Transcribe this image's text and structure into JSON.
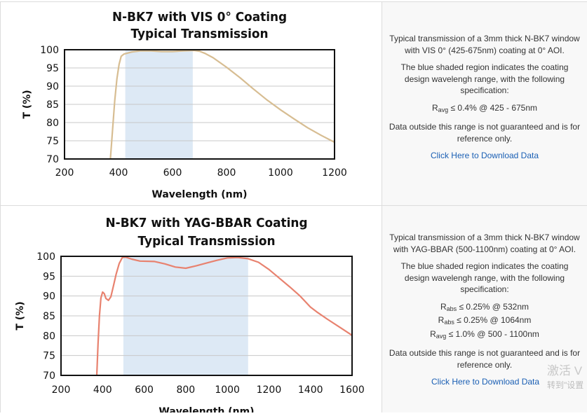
{
  "charts": [
    {
      "chart_data": {
        "type": "line",
        "title": "N-BK7 with VIS 0° Coating",
        "subtitle": "Typical Transmission",
        "xlabel": "Wavelength (nm)",
        "ylabel": "T (%)",
        "xlim": [
          200,
          1200
        ],
        "ylim": [
          70,
          100
        ],
        "xticks": [
          200,
          400,
          600,
          800,
          1000,
          1200
        ],
        "yticks": [
          70,
          75,
          80,
          85,
          90,
          95,
          100
        ],
        "grid": "horizontal",
        "shaded_region": [
          425,
          675
        ],
        "series": [
          {
            "color": "#d7bd92",
            "points": [
              [
                370,
                70
              ],
              [
                378,
                78
              ],
              [
                386,
                86
              ],
              [
                394,
                92
              ],
              [
                402,
                96
              ],
              [
                410,
                98.2
              ],
              [
                420,
                98.8
              ],
              [
                430,
                99
              ],
              [
                450,
                99.4
              ],
              [
                480,
                99.7
              ],
              [
                520,
                99.7
              ],
              [
                560,
                99.5
              ],
              [
                600,
                99.5
              ],
              [
                640,
                99.7
              ],
              [
                680,
                99.8
              ],
              [
                700,
                99.6
              ],
              [
                720,
                99
              ],
              [
                750,
                97.8
              ],
              [
                800,
                95.2
              ],
              [
                850,
                92.3
              ],
              [
                900,
                89.2
              ],
              [
                950,
                86.2
              ],
              [
                1000,
                83.5
              ],
              [
                1050,
                81
              ],
              [
                1100,
                78.6
              ],
              [
                1150,
                76.5
              ],
              [
                1200,
                74.6
              ]
            ]
          }
        ]
      },
      "description": {
        "intro": "Typical transmission of a 3mm thick N-BK7 window with VIS 0° (425-675nm) coating at 0° AOI.",
        "shading": "The blue shaded region indicates the coating design wavelengh range, with the following specification:",
        "specs": [
          {
            "sym": "R",
            "sub": "avg",
            "text": "≤ 0.4% @ 425 - 675nm"
          }
        ],
        "disclaimer": "Data outside this range is not guaranteed and is for reference only.",
        "link": "Click Here to Download Data"
      }
    },
    {
      "chart_data": {
        "type": "line",
        "title": "N-BK7 with YAG-BBAR Coating",
        "subtitle": "Typical Transmission",
        "xlabel": "Wavelength (nm)",
        "ylabel": "T (%)",
        "xlim": [
          200,
          1600
        ],
        "ylim": [
          70,
          100
        ],
        "xticks": [
          200,
          400,
          600,
          800,
          1000,
          1200,
          1400,
          1600
        ],
        "yticks": [
          70,
          75,
          80,
          85,
          90,
          95,
          100
        ],
        "grid": "horizontal",
        "shaded_region": [
          500,
          1100
        ],
        "series": [
          {
            "color": "#e8826f",
            "points": [
              [
                372,
                70
              ],
              [
                378,
                78
              ],
              [
                385,
                85
              ],
              [
                392,
                89.5
              ],
              [
                400,
                91
              ],
              [
                408,
                90.6
              ],
              [
                416,
                89.4
              ],
              [
                428,
                88.9
              ],
              [
                440,
                89.8
              ],
              [
                452,
                92.5
              ],
              [
                465,
                95.5
              ],
              [
                480,
                98.2
              ],
              [
                495,
                99.7
              ],
              [
                510,
                99.8
              ],
              [
                540,
                99.3
              ],
              [
                580,
                98.8
              ],
              [
                650,
                98.7
              ],
              [
                700,
                98.1
              ],
              [
                750,
                97.3
              ],
              [
                800,
                97
              ],
              [
                850,
                97.6
              ],
              [
                900,
                98.3
              ],
              [
                950,
                99
              ],
              [
                1000,
                99.6
              ],
              [
                1050,
                99.7
              ],
              [
                1100,
                99.4
              ],
              [
                1150,
                98.5
              ],
              [
                1200,
                96.7
              ],
              [
                1250,
                94.5
              ],
              [
                1300,
                92.3
              ],
              [
                1350,
                90
              ],
              [
                1400,
                87.2
              ],
              [
                1430,
                86
              ],
              [
                1480,
                84.2
              ],
              [
                1550,
                81.8
              ],
              [
                1600,
                80.1
              ]
            ]
          }
        ]
      },
      "description": {
        "intro": "Typical transmission of a 3mm thick N-BK7 window with YAG-BBAR (500-1100nm) coating at 0° AOI.",
        "shading": "The blue shaded region indicates the coating design wavelengh range, with the following specification:",
        "specs": [
          {
            "sym": "R",
            "sub": "abs",
            "text": "≤ 0.25% @ 532nm"
          },
          {
            "sym": "R",
            "sub": "abs",
            "text": "≤ 0.25% @ 1064nm"
          },
          {
            "sym": "R",
            "sub": "avg",
            "text": "≤ 1.0% @ 500 - 1100nm"
          }
        ],
        "disclaimer": "Data outside this range is not guaranteed and is for reference only.",
        "link": "Click Here to Download Data"
      }
    }
  ],
  "watermark": {
    "line1": "激活 V",
    "line2": "转到\"设置"
  },
  "colors": {
    "shade": "#dde9f5",
    "grid": "#c8c8c8",
    "axis": "#111111",
    "link": "#1a5fb4"
  }
}
